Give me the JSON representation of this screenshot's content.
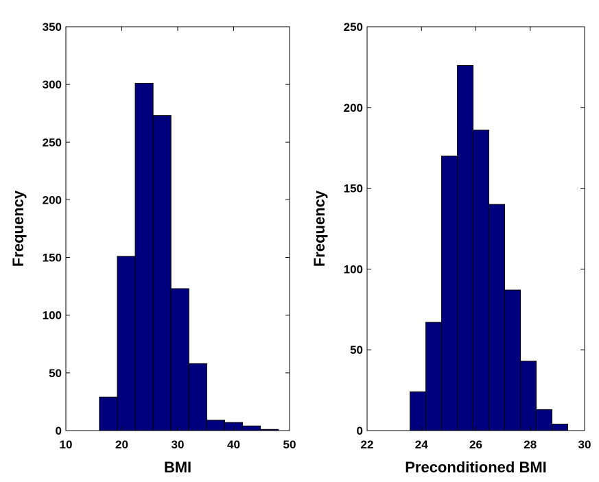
{
  "chart_data": [
    {
      "type": "bar",
      "title": "",
      "xlabel": "BMI",
      "ylabel": "Frequency",
      "xlim": [
        10,
        50
      ],
      "ylim": [
        0,
        350
      ],
      "xticks": [
        10,
        20,
        30,
        40,
        50
      ],
      "yticks": [
        0,
        50,
        100,
        150,
        200,
        250,
        300,
        350
      ],
      "bins": [
        {
          "x0": 16.0,
          "x1": 19.2,
          "value": 29
        },
        {
          "x0": 19.2,
          "x1": 22.4,
          "value": 151
        },
        {
          "x0": 22.4,
          "x1": 25.6,
          "value": 301
        },
        {
          "x0": 25.6,
          "x1": 28.8,
          "value": 273
        },
        {
          "x0": 28.8,
          "x1": 32.0,
          "value": 123
        },
        {
          "x0": 32.0,
          "x1": 35.2,
          "value": 58
        },
        {
          "x0": 35.2,
          "x1": 38.4,
          "value": 9
        },
        {
          "x0": 38.4,
          "x1": 41.6,
          "value": 7
        },
        {
          "x0": 41.6,
          "x1": 44.8,
          "value": 4
        },
        {
          "x0": 44.8,
          "x1": 48.0,
          "value": 1
        }
      ],
      "bar_color": "#00007f",
      "edge_color": "#000000",
      "grid": false
    },
    {
      "type": "bar",
      "title": "",
      "xlabel": "Preconditioned BMI",
      "ylabel": "Frequency",
      "xlim": [
        22,
        30
      ],
      "ylim": [
        0,
        250
      ],
      "xticks": [
        22,
        24,
        26,
        28,
        30
      ],
      "yticks": [
        0,
        50,
        100,
        150,
        200,
        250
      ],
      "bins": [
        {
          "x0": 23.58,
          "x1": 24.16,
          "value": 24
        },
        {
          "x0": 24.16,
          "x1": 24.74,
          "value": 67
        },
        {
          "x0": 24.74,
          "x1": 25.32,
          "value": 170
        },
        {
          "x0": 25.32,
          "x1": 25.9,
          "value": 226
        },
        {
          "x0": 25.9,
          "x1": 26.48,
          "value": 186
        },
        {
          "x0": 26.48,
          "x1": 27.06,
          "value": 140
        },
        {
          "x0": 27.06,
          "x1": 27.64,
          "value": 87
        },
        {
          "x0": 27.64,
          "x1": 28.22,
          "value": 43
        },
        {
          "x0": 28.22,
          "x1": 28.8,
          "value": 13
        },
        {
          "x0": 28.8,
          "x1": 29.38,
          "value": 4
        }
      ],
      "bar_color": "#00007f",
      "edge_color": "#000000",
      "grid": false
    }
  ]
}
